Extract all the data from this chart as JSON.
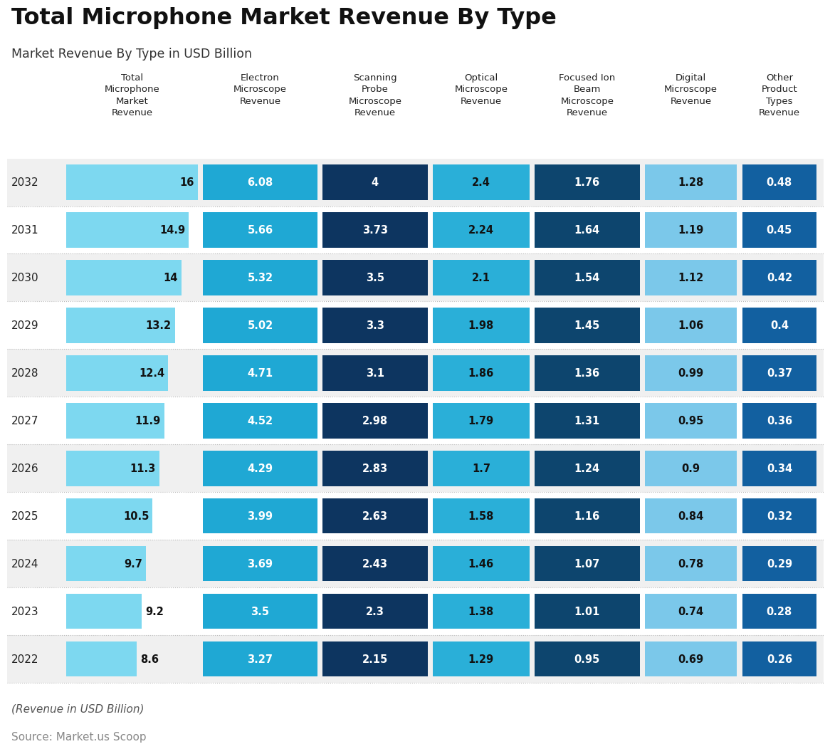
{
  "title": "Total Microphone Market Revenue By Type",
  "subtitle": "Market Revenue By Type in USD Billion",
  "footer_line1": "(Revenue in USD Billion)",
  "footer_line2": "Source: Market.us Scoop",
  "columns": [
    "Total\nMicrophone\nMarket\nRevenue",
    "Electron\nMicroscope\nRevenue",
    "Scanning\nProbe\nMicroscope\nRevenue",
    "Optical\nMicroscope\nRevenue",
    "Focused Ion\nBeam\nMicroscope\nRevenue",
    "Digital\nMicroscope\nRevenue",
    "Other\nProduct\nTypes\nRevenue"
  ],
  "years": [
    2032,
    2031,
    2030,
    2029,
    2028,
    2027,
    2026,
    2025,
    2024,
    2023,
    2022
  ],
  "data": {
    "2032": [
      16,
      6.08,
      4,
      2.4,
      1.76,
      1.28,
      0.48
    ],
    "2031": [
      14.9,
      5.66,
      3.73,
      2.24,
      1.64,
      1.19,
      0.45
    ],
    "2030": [
      14,
      5.32,
      3.5,
      2.1,
      1.54,
      1.12,
      0.42
    ],
    "2029": [
      13.2,
      5.02,
      3.3,
      1.98,
      1.45,
      1.06,
      0.4
    ],
    "2028": [
      12.4,
      4.71,
      3.1,
      1.86,
      1.36,
      0.99,
      0.37
    ],
    "2027": [
      11.9,
      4.52,
      2.98,
      1.79,
      1.31,
      0.95,
      0.36
    ],
    "2026": [
      11.3,
      4.29,
      2.83,
      1.7,
      1.24,
      0.9,
      0.34
    ],
    "2025": [
      10.5,
      3.99,
      2.63,
      1.58,
      1.16,
      0.84,
      0.32
    ],
    "2024": [
      9.7,
      3.69,
      2.43,
      1.46,
      1.07,
      0.78,
      0.29
    ],
    "2023": [
      9.2,
      3.5,
      2.3,
      1.38,
      1.01,
      0.74,
      0.28
    ],
    "2022": [
      8.6,
      3.27,
      2.15,
      1.29,
      0.95,
      0.69,
      0.26
    ]
  },
  "bar_colors": [
    "#7DD8F0",
    "#1FA8D4",
    "#0D3560",
    "#2AAFD8",
    "#0D456E",
    "#7BC8EA",
    "#1260A0"
  ],
  "text_colors": [
    "#111111",
    "#ffffff",
    "#ffffff",
    "#111111",
    "#ffffff",
    "#111111",
    "#ffffff"
  ],
  "bg_color": "#ffffff",
  "row_alt_colors": [
    "#f0f0f0",
    "#ffffff"
  ],
  "year_label_color": "#222222",
  "dotted_line_color": "#bbbbbb",
  "col_proportional": [
    true,
    false,
    false,
    false,
    false,
    false,
    false
  ]
}
